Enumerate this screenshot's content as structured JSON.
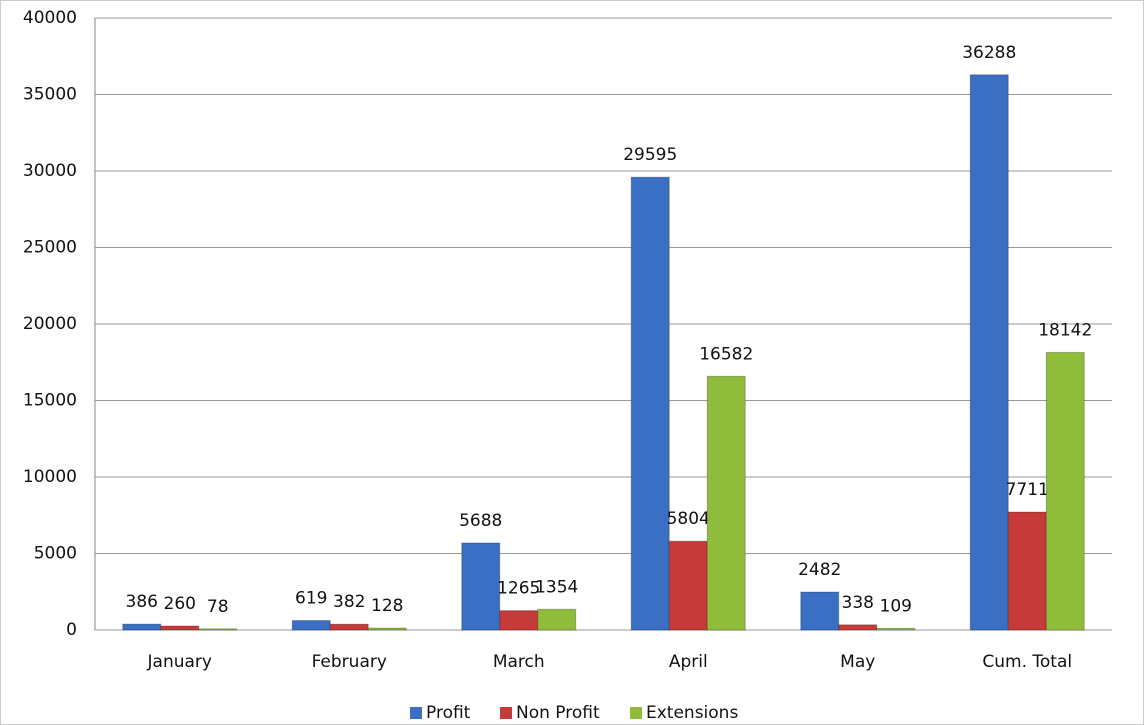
{
  "chart_data": {
    "type": "bar",
    "categories": [
      "January",
      "February",
      "March",
      "April",
      "May",
      "Cum. Total"
    ],
    "series": [
      {
        "name": "Profit",
        "color": "#3a6fc4",
        "values": [
          386,
          619,
          5688,
          29595,
          2482,
          36288
        ]
      },
      {
        "name": "Non Profit",
        "color": "#c63a3a",
        "values": [
          260,
          382,
          1265,
          5804,
          338,
          7711
        ]
      },
      {
        "name": "Extensions",
        "color": "#8fbc3a",
        "values": [
          78,
          128,
          1354,
          16582,
          109,
          18142
        ]
      }
    ],
    "ylim": [
      0,
      40000
    ],
    "yticks": [
      0,
      5000,
      10000,
      15000,
      20000,
      25000,
      30000,
      35000,
      40000
    ],
    "grid": true,
    "legend": "bottom"
  }
}
